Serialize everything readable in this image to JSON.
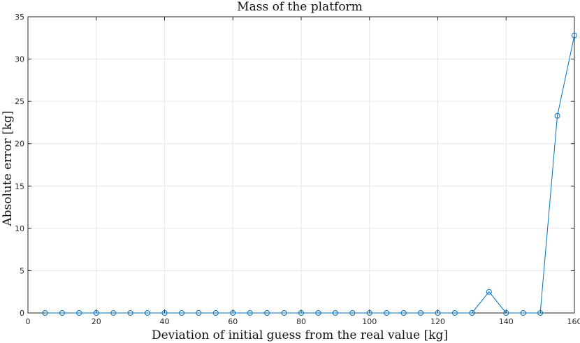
{
  "chart_data": {
    "type": "line",
    "title": "Mass of the platform",
    "xlabel": "Deviation of initial guess from the real value [kg]",
    "ylabel": "Absolute error [kg]",
    "xlim": [
      0,
      160
    ],
    "ylim": [
      0,
      35
    ],
    "xticks": [
      0,
      20,
      40,
      60,
      80,
      100,
      120,
      140,
      160
    ],
    "yticks": [
      0,
      5,
      10,
      15,
      20,
      25,
      30,
      35
    ],
    "grid": true,
    "marker": "circle",
    "color": "#0072BD",
    "series": [
      {
        "x": [
          5,
          10,
          15,
          20,
          25,
          30,
          35,
          40,
          45,
          50,
          55,
          60,
          65,
          70,
          75,
          80,
          85,
          90,
          95,
          100,
          105,
          110,
          115,
          120,
          125,
          130,
          135,
          140,
          145,
          150,
          155,
          160
        ],
        "y": [
          0,
          0,
          0,
          0,
          0,
          0,
          0,
          0,
          0,
          0,
          0,
          0,
          0,
          0,
          0,
          0,
          0,
          0,
          0,
          0,
          0,
          0,
          0,
          0,
          0,
          0,
          2.5,
          0,
          0,
          0,
          23.3,
          32.8
        ]
      }
    ]
  }
}
